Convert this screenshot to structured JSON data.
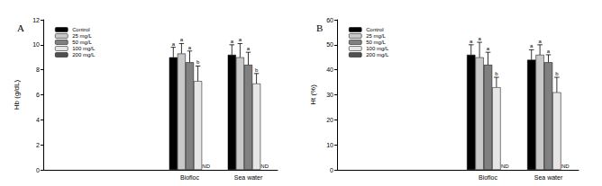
{
  "chart_data": [
    {
      "type": "bar",
      "title": "A",
      "y_label": "Hb (g/dL)",
      "categories": [
        null,
        null,
        "Biofloc",
        "Sea water"
      ],
      "ylim": [
        0,
        12
      ],
      "yticks": [
        0,
        2,
        4,
        6,
        8,
        10,
        12
      ],
      "grid": false,
      "legend": "upper left",
      "series": [
        {
          "name": "Control",
          "color": "#000000",
          "values": [
            null,
            null,
            9.0,
            9.2
          ],
          "errors": [
            null,
            null,
            0.8,
            0.8
          ],
          "annotations": [
            null,
            null,
            "a",
            "a"
          ]
        },
        {
          "name": "25 mg/L",
          "color": "#c8c8c8",
          "values": [
            null,
            null,
            9.3,
            9.0
          ],
          "errors": [
            null,
            null,
            0.8,
            1.1
          ],
          "annotations": [
            null,
            null,
            "a",
            "a"
          ]
        },
        {
          "name": "50 mg/L",
          "color": "#808080",
          "values": [
            null,
            null,
            8.6,
            8.4
          ],
          "errors": [
            null,
            null,
            0.9,
            1.0
          ],
          "annotations": [
            null,
            null,
            "a",
            "a"
          ]
        },
        {
          "name": "100 mg/L",
          "color": "#e6e6e6",
          "values": [
            null,
            null,
            7.1,
            6.9
          ],
          "errors": [
            null,
            null,
            1.2,
            0.8
          ],
          "annotations": [
            null,
            null,
            "b",
            "b"
          ]
        },
        {
          "name": "200 mg/L",
          "color": "#505050",
          "values": [
            null,
            null,
            null,
            null
          ],
          "errors": [
            null,
            null,
            null,
            null
          ],
          "annotations": [
            null,
            null,
            "ND",
            "ND"
          ]
        }
      ]
    },
    {
      "type": "bar",
      "title": "B",
      "y_label": "Ht (%)",
      "categories": [
        null,
        null,
        "Biofloc",
        "Sea water"
      ],
      "ylim": [
        0,
        60
      ],
      "yticks": [
        0,
        10,
        20,
        30,
        40,
        50,
        60
      ],
      "grid": false,
      "legend": "upper left",
      "series": [
        {
          "name": "Control",
          "color": "#000000",
          "values": [
            null,
            null,
            46,
            44
          ],
          "errors": [
            null,
            null,
            4,
            4
          ],
          "annotations": [
            null,
            null,
            "a",
            "a"
          ]
        },
        {
          "name": "25 mg/L",
          "color": "#c8c8c8",
          "values": [
            null,
            null,
            45,
            46
          ],
          "errors": [
            null,
            null,
            6,
            4
          ],
          "annotations": [
            null,
            null,
            "a",
            "a"
          ]
        },
        {
          "name": "50 mg/L",
          "color": "#808080",
          "values": [
            null,
            null,
            42,
            43
          ],
          "errors": [
            null,
            null,
            5,
            3
          ],
          "annotations": [
            null,
            null,
            "a",
            "a"
          ]
        },
        {
          "name": "100 mg/L",
          "color": "#e6e6e6",
          "values": [
            null,
            null,
            33,
            31
          ],
          "errors": [
            null,
            null,
            4,
            6
          ],
          "annotations": [
            null,
            null,
            "b",
            "b"
          ]
        },
        {
          "name": "200 mg/L",
          "color": "#505050",
          "values": [
            null,
            null,
            null,
            null
          ],
          "errors": [
            null,
            null,
            null,
            null
          ],
          "annotations": [
            null,
            null,
            "ND",
            "ND"
          ]
        }
      ]
    }
  ]
}
